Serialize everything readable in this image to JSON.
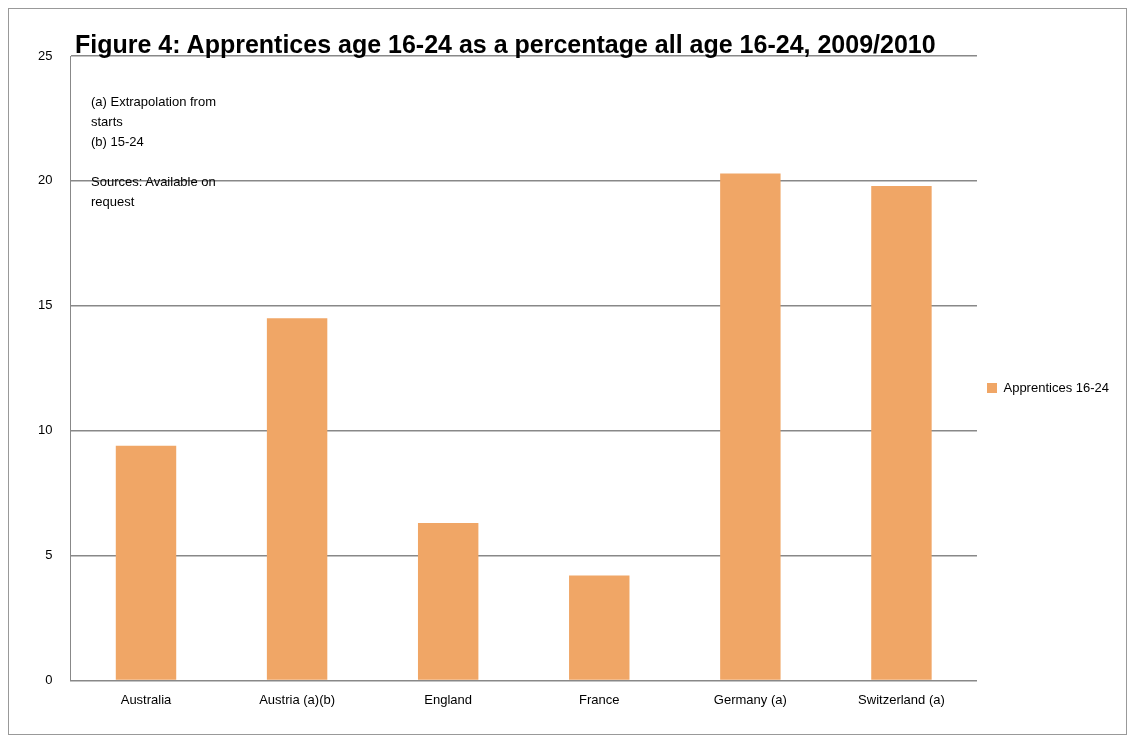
{
  "chart_data": {
    "type": "bar",
    "title": "Figure 4: Apprentices age 16-24 as a percentage all age 16-24, 2009/2010",
    "categories": [
      "Australia",
      "Austria (a)(b)",
      "England",
      "France",
      "Germany (a)",
      "Switzerland (a)"
    ],
    "series": [
      {
        "name": "Apprentices 16-24",
        "color": "#f0a666",
        "values": [
          9.4,
          14.5,
          6.3,
          4.2,
          20.3,
          19.8
        ]
      }
    ],
    "ylim": [
      0,
      25
    ],
    "yticks": [
      0,
      5,
      10,
      15,
      20,
      25
    ],
    "grid": "y",
    "legend": "right",
    "annotations": [
      "(a) Extrapolation from starts",
      "(b) 15-24",
      "Sources: Available on request"
    ]
  }
}
